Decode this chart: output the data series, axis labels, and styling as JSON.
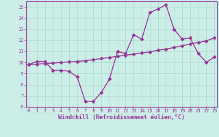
{
  "x": [
    0,
    1,
    2,
    3,
    4,
    5,
    6,
    7,
    8,
    9,
    10,
    11,
    12,
    13,
    14,
    15,
    16,
    17,
    18,
    19,
    20,
    21,
    22,
    23
  ],
  "windchill": [
    9.8,
    10.1,
    10.1,
    9.3,
    9.3,
    9.2,
    8.7,
    6.5,
    6.5,
    7.3,
    8.5,
    11.0,
    10.8,
    12.5,
    12.1,
    14.5,
    14.8,
    15.2,
    13.0,
    12.1,
    12.2,
    10.8,
    10.0,
    10.5
  ],
  "trend": [
    9.8,
    9.85,
    9.9,
    9.95,
    10.0,
    10.05,
    10.1,
    10.15,
    10.25,
    10.35,
    10.45,
    10.55,
    10.65,
    10.75,
    10.85,
    10.95,
    11.1,
    11.2,
    11.35,
    11.5,
    11.65,
    11.8,
    11.95,
    12.2
  ],
  "line_color": "#993399",
  "bg_color": "#cceee8",
  "grid_color": "#aaddcc",
  "xlim": [
    0,
    23
  ],
  "ylim": [
    6,
    15.5
  ],
  "yticks": [
    6,
    7,
    8,
    9,
    10,
    11,
    12,
    13,
    14,
    15
  ],
  "xticks": [
    0,
    1,
    2,
    3,
    4,
    5,
    6,
    7,
    8,
    9,
    10,
    11,
    12,
    13,
    14,
    15,
    16,
    17,
    18,
    19,
    20,
    21,
    22,
    23
  ],
  "xlabel": "Windchill (Refroidissement éolien,°C)",
  "marker": "D",
  "markersize": 2.5,
  "linewidth": 1.0,
  "tick_fontsize": 5.0,
  "label_fontsize": 6.0
}
